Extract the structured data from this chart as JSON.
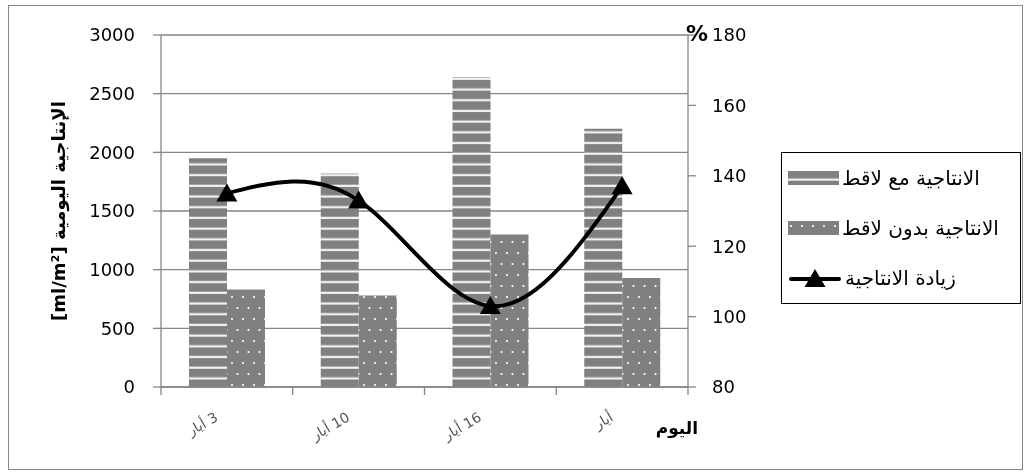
{
  "chart_data": {
    "type": "bar",
    "categories": [
      "3 أيار",
      "10 أيار",
      "16 أيار",
      "أيار"
    ],
    "xlabel": "اليوم",
    "ylabel": "الإنتاجية اليومية [ml/m²]",
    "y2label": "%",
    "series": [
      {
        "name": "الانتاجية مع لاقط",
        "color": "#808080",
        "values": [
          1950,
          1820,
          2640,
          2200
        ]
      },
      {
        "name": "الانتاجية بدون لاقط",
        "color": "#808080",
        "values": [
          830,
          780,
          1300,
          930
        ]
      },
      {
        "name": "زيادة الانتاجية",
        "type": "line",
        "axis": "y2",
        "color": "#000000",
        "values": [
          135,
          133,
          103,
          137
        ]
      }
    ],
    "ylim": [
      0,
      3000
    ],
    "yticks": [
      0,
      500,
      1000,
      1500,
      2000,
      2500,
      3000
    ],
    "y2lim": [
      80,
      180
    ],
    "y2ticks": [
      80,
      100,
      120,
      140,
      160,
      180
    ],
    "grid": "y",
    "legend": "right",
    "marker": "triangle"
  }
}
